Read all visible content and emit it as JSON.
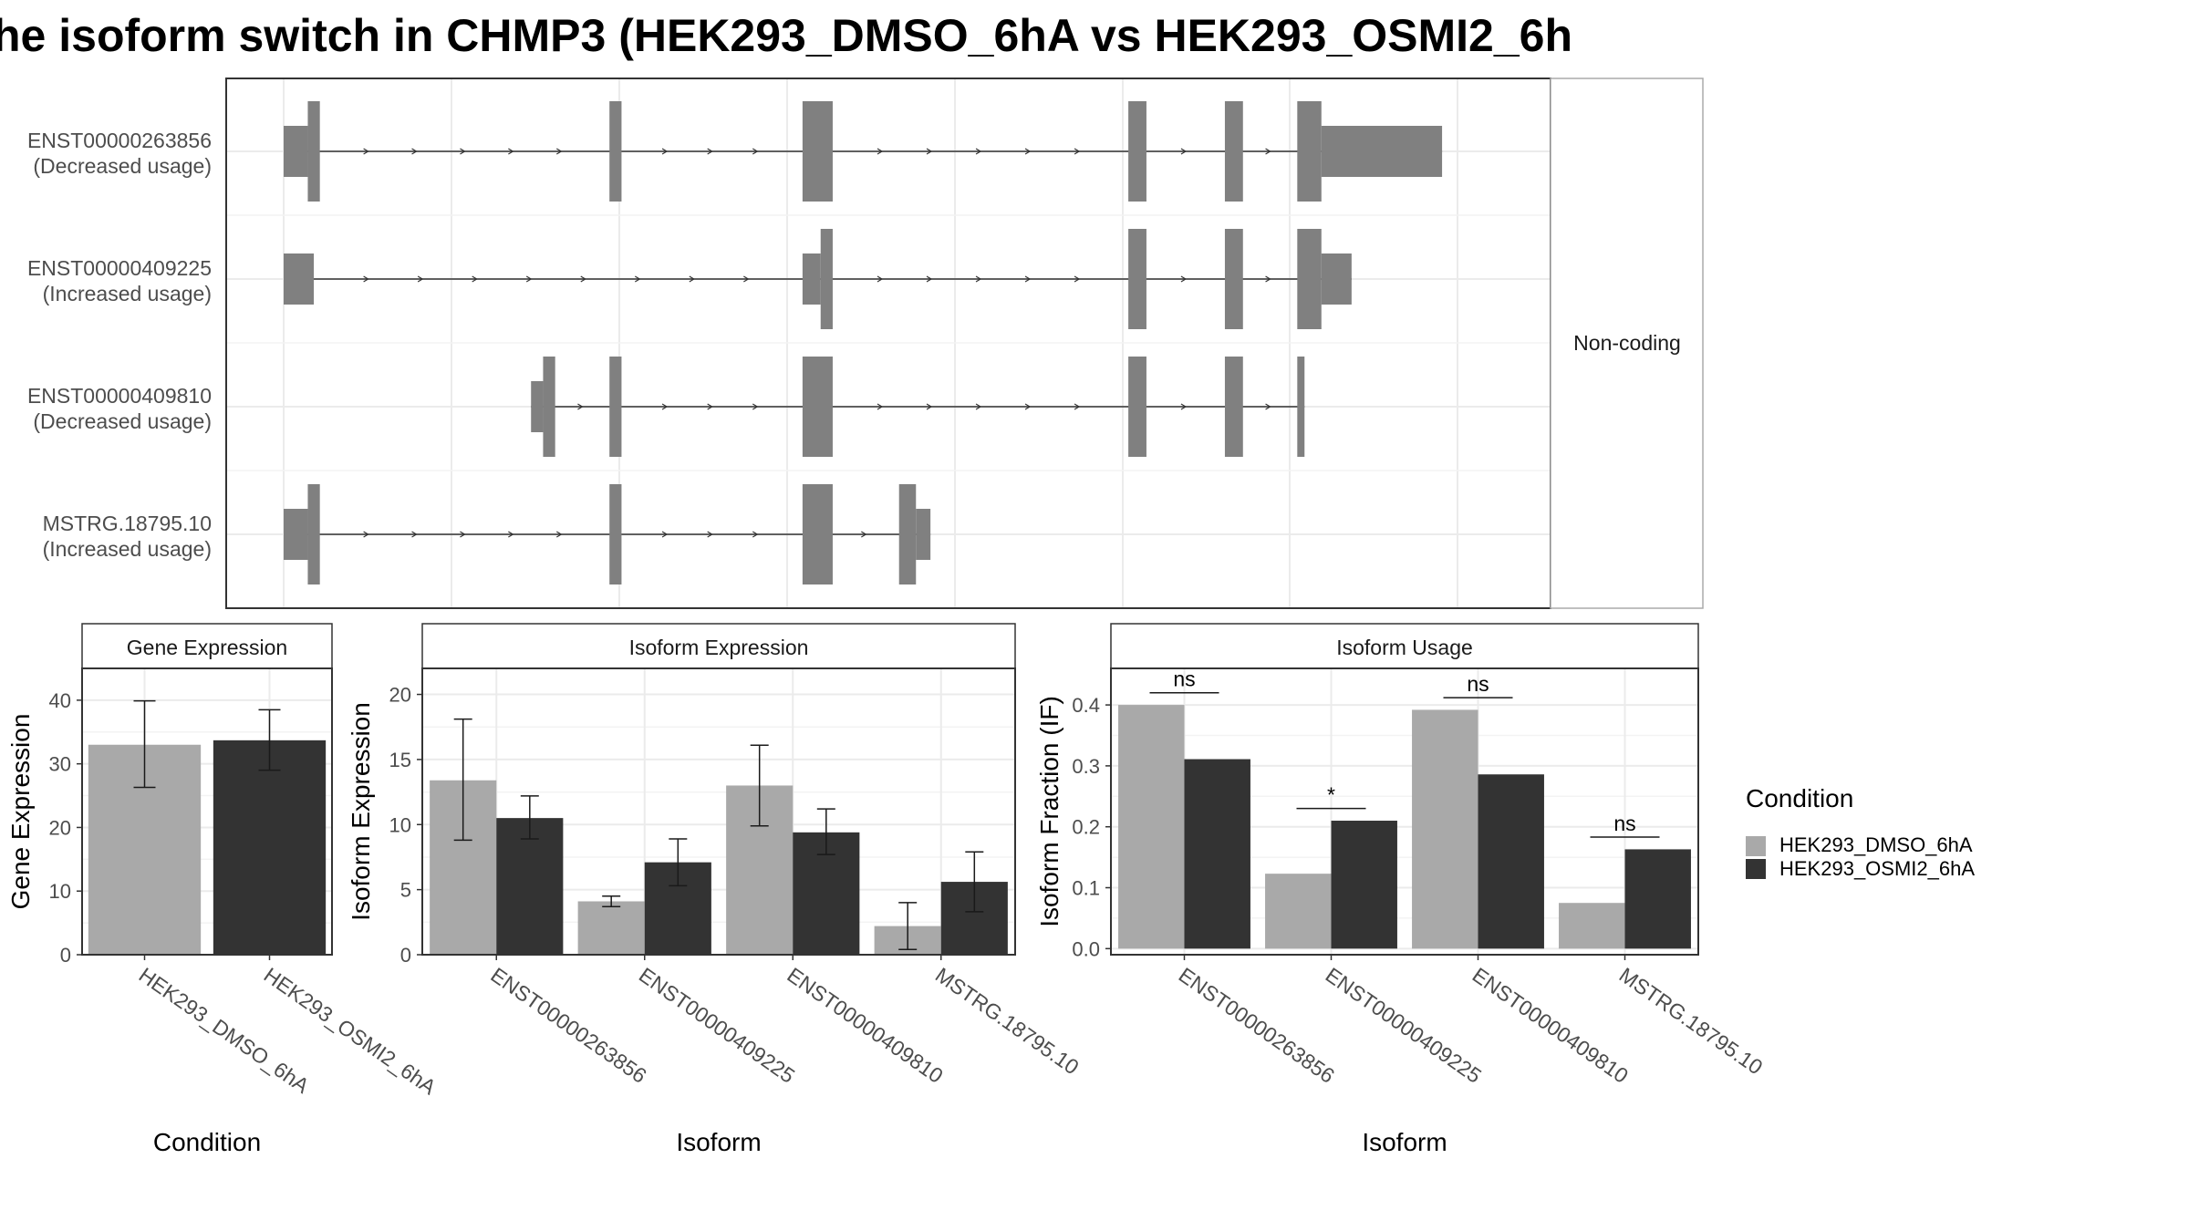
{
  "title": "he isoform switch in CHMP3 (HEK293_DMSO_6hA vs HEK293_OSMI2_6h",
  "colors": {
    "dmso": "#a9a9a9",
    "osmi2": "#333333",
    "exon": "#808080",
    "grid": "#ebebeb",
    "border": "#333333",
    "strip_border": "#aaaaaa",
    "text": "#4d4d4d"
  },
  "chart_data": [
    {
      "id": "isoform_structure",
      "type": "diagram",
      "facet_label": "Non-coding",
      "isoforms": [
        {
          "name": "ENST00000263856",
          "usage": "(Decreased usage)",
          "exons": [
            {
              "start": 0.0,
              "end": 0.02,
              "h": "small"
            },
            {
              "start": 0.02,
              "end": 0.03,
              "h": "big"
            },
            {
              "start": 0.27,
              "end": 0.28,
              "h": "big"
            },
            {
              "start": 0.43,
              "end": 0.455,
              "h": "big"
            },
            {
              "start": 0.7,
              "end": 0.715,
              "h": "big"
            },
            {
              "start": 0.78,
              "end": 0.795,
              "h": "big"
            },
            {
              "start": 0.84,
              "end": 0.86,
              "h": "big"
            },
            {
              "start": 0.86,
              "end": 0.96,
              "h": "medium"
            }
          ]
        },
        {
          "name": "ENST00000409225",
          "usage": "(Increased usage)",
          "exons": [
            {
              "start": 0.0,
              "end": 0.025,
              "h": "small"
            },
            {
              "start": 0.43,
              "end": 0.445,
              "h": "small"
            },
            {
              "start": 0.445,
              "end": 0.455,
              "h": "big"
            },
            {
              "start": 0.7,
              "end": 0.715,
              "h": "big"
            },
            {
              "start": 0.78,
              "end": 0.795,
              "h": "big"
            },
            {
              "start": 0.84,
              "end": 0.86,
              "h": "big"
            },
            {
              "start": 0.86,
              "end": 0.885,
              "h": "small"
            }
          ]
        },
        {
          "name": "ENST00000409810",
          "usage": "(Decreased usage)",
          "exons": [
            {
              "start": 0.205,
              "end": 0.215,
              "h": "small"
            },
            {
              "start": 0.215,
              "end": 0.225,
              "h": "big"
            },
            {
              "start": 0.27,
              "end": 0.28,
              "h": "big"
            },
            {
              "start": 0.43,
              "end": 0.455,
              "h": "big"
            },
            {
              "start": 0.7,
              "end": 0.715,
              "h": "big"
            },
            {
              "start": 0.78,
              "end": 0.795,
              "h": "big"
            },
            {
              "start": 0.84,
              "end": 0.846,
              "h": "big"
            }
          ]
        },
        {
          "name": "MSTRG.18795.10",
          "usage": "(Increased usage)",
          "exons": [
            {
              "start": 0.0,
              "end": 0.02,
              "h": "small"
            },
            {
              "start": 0.02,
              "end": 0.03,
              "h": "big"
            },
            {
              "start": 0.27,
              "end": 0.28,
              "h": "big"
            },
            {
              "start": 0.43,
              "end": 0.455,
              "h": "big"
            },
            {
              "start": 0.51,
              "end": 0.524,
              "h": "big"
            },
            {
              "start": 0.524,
              "end": 0.536,
              "h": "small"
            }
          ]
        }
      ]
    },
    {
      "id": "gene_expression",
      "type": "bar",
      "title": "Gene Expression",
      "ylabel": "Gene Expression",
      "xlabel": "Condition",
      "ylim": [
        0,
        45
      ],
      "yticks": [
        0,
        10,
        20,
        30,
        40
      ],
      "categories": [
        "HEK293_DMSO_6hA",
        "HEK293_OSMI2_6hA"
      ],
      "values": [
        33.0,
        33.7
      ],
      "errors": [
        [
          26.3,
          39.9
        ],
        [
          29.0,
          38.5
        ]
      ],
      "bar_colors": [
        "#a9a9a9",
        "#333333"
      ]
    },
    {
      "id": "isoform_expression",
      "type": "bar",
      "title": "Isoform Expression",
      "ylabel": "Isoform Expression",
      "xlabel": "Isoform",
      "ylim": [
        0,
        22
      ],
      "yticks": [
        0,
        5,
        10,
        15,
        20
      ],
      "categories": [
        "ENST00000263856",
        "ENST00000409225",
        "ENST00000409810",
        "MSTRG.18795.10"
      ],
      "series": [
        {
          "name": "HEK293_DMSO_6hA",
          "values": [
            13.4,
            4.1,
            13.0,
            2.2
          ],
          "errors": [
            [
              8.8,
              18.1
            ],
            [
              3.7,
              4.5
            ],
            [
              9.9,
              16.1
            ],
            [
              0.4,
              4.0
            ]
          ]
        },
        {
          "name": "HEK293_OSMI2_6hA",
          "values": [
            10.5,
            7.1,
            9.4,
            5.6
          ],
          "errors": [
            [
              8.9,
              12.2
            ],
            [
              5.3,
              8.9
            ],
            [
              7.7,
              11.2
            ],
            [
              3.3,
              7.9
            ]
          ]
        }
      ]
    },
    {
      "id": "isoform_usage",
      "type": "bar",
      "title": "Isoform Usage",
      "ylabel": "Isoform Fraction (IF)",
      "xlabel": "Isoform",
      "ylim": [
        -0.01,
        0.46
      ],
      "yticks": [
        0.0,
        0.1,
        0.2,
        0.3,
        0.4
      ],
      "ytick_labels": [
        "0.0",
        "0.1",
        "0.2",
        "0.3",
        "0.4"
      ],
      "categories": [
        "ENST00000263856",
        "ENST00000409225",
        "ENST00000409810",
        "MSTRG.18795.10"
      ],
      "series": [
        {
          "name": "HEK293_DMSO_6hA",
          "values": [
            0.4,
            0.123,
            0.392,
            0.075
          ]
        },
        {
          "name": "HEK293_OSMI2_6hA",
          "values": [
            0.311,
            0.21,
            0.286,
            0.163
          ]
        }
      ],
      "significance": [
        {
          "label": "ns",
          "y": 0.42
        },
        {
          "label": "*",
          "y": 0.23
        },
        {
          "label": "ns",
          "y": 0.412
        },
        {
          "label": "ns",
          "y": 0.183
        }
      ]
    }
  ],
  "legend": {
    "title": "Condition",
    "items": [
      {
        "label": "HEK293_DMSO_6hA",
        "color": "#a9a9a9"
      },
      {
        "label": "HEK293_OSMI2_6hA",
        "color": "#333333"
      }
    ]
  }
}
